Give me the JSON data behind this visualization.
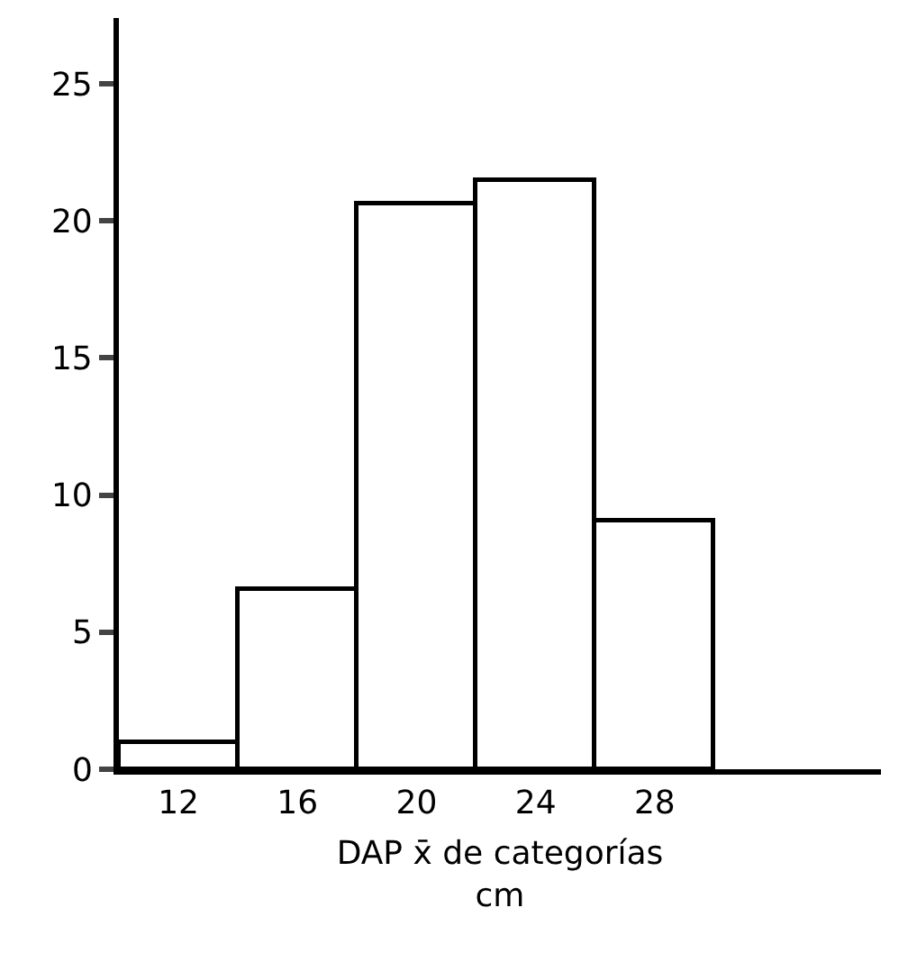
{
  "chart_data": {
    "type": "bar",
    "xlabel": "DAP x̄ de categorías\ncm",
    "categories": [
      "12",
      "16",
      "20",
      "24",
      "28"
    ],
    "values": [
      1,
      6.6,
      20.6,
      21.5,
      9.1
    ],
    "color": "#ffffff",
    "ylim": [
      0,
      27.4
    ],
    "yticks": [
      0,
      5,
      10,
      15,
      20,
      25
    ]
  }
}
